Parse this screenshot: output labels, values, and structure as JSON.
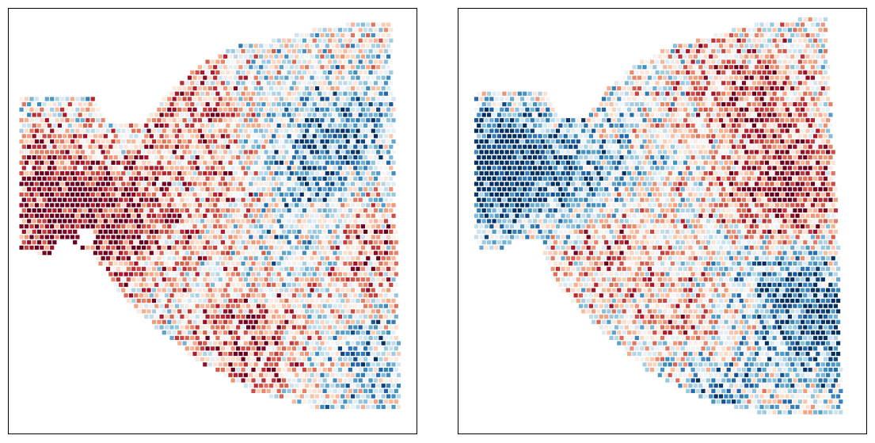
{
  "chart_data": [
    {
      "type": "scatter",
      "marker": "square",
      "colormap": "RdBu_r",
      "x_range": [
        0,
        1
      ],
      "y_range": [
        0,
        1
      ],
      "axes_visible": false,
      "ticks": "none",
      "title": "",
      "grid": false,
      "legend": "none",
      "outline": [
        [
          0.03,
          0.79
        ],
        [
          0.21,
          0.79
        ],
        [
          0.24,
          0.73
        ],
        [
          0.33,
          0.73
        ],
        [
          0.4,
          0.81
        ],
        [
          0.46,
          0.86
        ],
        [
          0.55,
          0.91
        ],
        [
          0.67,
          0.93
        ],
        [
          0.78,
          0.96
        ],
        [
          0.94,
          0.97
        ],
        [
          0.95,
          0.5
        ],
        [
          0.96,
          0.05
        ],
        [
          0.8,
          0.05
        ],
        [
          0.62,
          0.09
        ],
        [
          0.48,
          0.16
        ],
        [
          0.36,
          0.25
        ],
        [
          0.27,
          0.33
        ],
        [
          0.21,
          0.42
        ],
        [
          0.13,
          0.46
        ],
        [
          0.1,
          0.42
        ],
        [
          0.03,
          0.43
        ]
      ],
      "notch": [
        0.17,
        0.48,
        0.21,
        0.44
      ],
      "hotspots": [
        [
          0.1,
          0.55,
          1.6
        ],
        [
          0.27,
          0.48,
          1.2
        ],
        [
          0.85,
          0.42,
          1.0
        ],
        [
          0.6,
          0.23,
          1.2
        ],
        [
          0.42,
          0.8,
          0.8
        ],
        [
          0.55,
          0.6,
          0.7
        ]
      ],
      "coldspots": [
        [
          0.72,
          0.62,
          -1.0
        ],
        [
          0.7,
          0.4,
          -0.6
        ],
        [
          0.9,
          0.2,
          -0.8
        ],
        [
          0.85,
          0.72,
          -0.6
        ]
      ],
      "seed": 7
    },
    {
      "type": "scatter",
      "marker": "square",
      "colormap": "RdBu_r",
      "x_range": [
        0,
        1
      ],
      "y_range": [
        0,
        1
      ],
      "axes_visible": false,
      "ticks": "none",
      "title": "",
      "grid": false,
      "legend": "none",
      "outline": [
        [
          0.04,
          0.81
        ],
        [
          0.21,
          0.81
        ],
        [
          0.25,
          0.75
        ],
        [
          0.32,
          0.75
        ],
        [
          0.37,
          0.82
        ],
        [
          0.44,
          0.87
        ],
        [
          0.52,
          0.91
        ],
        [
          0.63,
          0.94
        ],
        [
          0.76,
          0.97
        ],
        [
          0.9,
          0.98
        ],
        [
          0.93,
          0.5
        ],
        [
          0.94,
          0.04
        ],
        [
          0.78,
          0.04
        ],
        [
          0.6,
          0.08
        ],
        [
          0.46,
          0.15
        ],
        [
          0.34,
          0.25
        ],
        [
          0.26,
          0.33
        ],
        [
          0.2,
          0.42
        ],
        [
          0.14,
          0.46
        ],
        [
          0.1,
          0.43
        ],
        [
          0.04,
          0.44
        ]
      ],
      "notch": [
        0.15,
        0.45,
        0.21,
        0.4
      ],
      "hotspots": [
        [
          0.8,
          0.55,
          1.5
        ],
        [
          0.72,
          0.8,
          1.0
        ],
        [
          0.35,
          0.45,
          0.8
        ],
        [
          0.62,
          0.25,
          0.9
        ]
      ],
      "coldspots": [
        [
          0.09,
          0.62,
          -1.9
        ],
        [
          0.3,
          0.6,
          -1.0
        ],
        [
          0.78,
          0.35,
          -1.2
        ],
        [
          0.92,
          0.25,
          -1.0
        ],
        [
          0.62,
          0.12,
          -0.9
        ]
      ],
      "seed": 23
    }
  ]
}
